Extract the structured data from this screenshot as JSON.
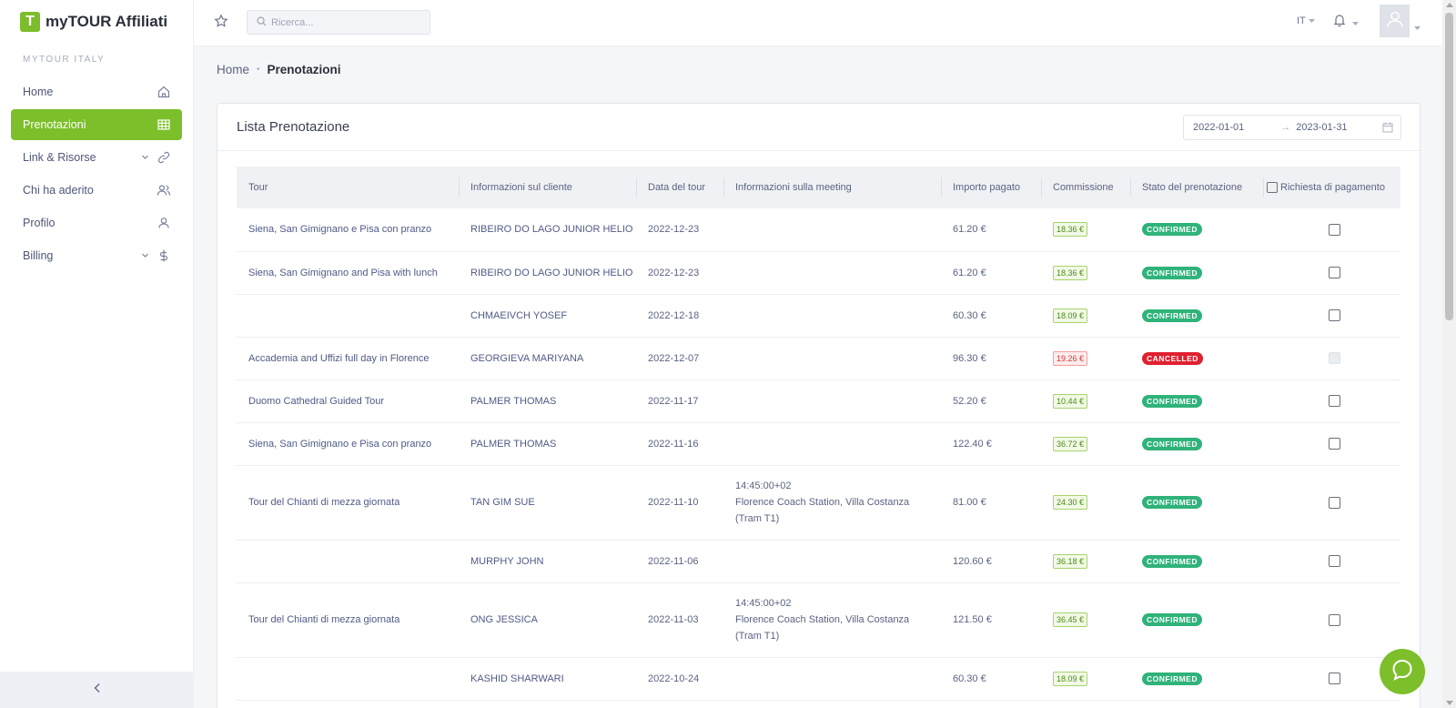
{
  "app": {
    "title": "myTOUR Affiliati",
    "logo_letter": "T",
    "accent": "#7cbf2b"
  },
  "sidebar": {
    "section": "MYTOUR ITALY",
    "items": [
      {
        "label": "Home",
        "icon": "home-icon"
      },
      {
        "label": "Prenotazioni",
        "icon": "table-icon",
        "active": true
      },
      {
        "label": "Link & Risorse",
        "icon": "link-icon",
        "expandable": true
      },
      {
        "label": "Chi ha aderito",
        "icon": "users-icon"
      },
      {
        "label": "Profilo",
        "icon": "user-icon"
      },
      {
        "label": "Billing",
        "icon": "dollar-icon",
        "expandable": true
      }
    ],
    "collapse_icon": "chevron-left-icon"
  },
  "topbar": {
    "search_placeholder": "Ricerca...",
    "language": "IT"
  },
  "breadcrumb": {
    "home": "Home",
    "current": "Prenotazioni"
  },
  "card": {
    "title": "Lista Prenotazione",
    "date_from": "2022-01-01",
    "date_to": "2023-01-31"
  },
  "table": {
    "headers": [
      "Tour",
      "Informazioni sul cliente",
      "Data del tour",
      "Informazioni sulla meeting",
      "Importo pagato",
      "Commissione",
      "Stato del prenotazione",
      "Richiesta di pagamento"
    ],
    "rows": [
      {
        "tour": "Siena, San Gimignano e Pisa con pranzo",
        "client": "RIBEIRO DO LAGO JUNIOR HELIO",
        "date": "2022-12-23",
        "meeting_time": "",
        "meeting_place": "",
        "meeting_place2": "",
        "amount": "61.20 €",
        "commission": "18.36 €",
        "status": "CONFIRMED"
      },
      {
        "tour": "Siena, San Gimignano and Pisa with lunch",
        "client": "RIBEIRO DO LAGO JUNIOR HELIO",
        "date": "2022-12-23",
        "meeting_time": "",
        "meeting_place": "",
        "meeting_place2": "",
        "amount": "61.20 €",
        "commission": "18.36 €",
        "status": "CONFIRMED"
      },
      {
        "tour": "",
        "client": "CHMAEIVCH YOSEF",
        "date": "2022-12-18",
        "meeting_time": "",
        "meeting_place": "",
        "meeting_place2": "",
        "amount": "60.30 €",
        "commission": "18.09 €",
        "status": "CONFIRMED"
      },
      {
        "tour": "Accademia and Uffizi full day in Florence",
        "client": "GEORGIEVA MARIYANA",
        "date": "2022-12-07",
        "meeting_time": "",
        "meeting_place": "",
        "meeting_place2": "",
        "amount": "96.30 €",
        "commission": "19.26 €",
        "status": "CANCELLED"
      },
      {
        "tour": "Duomo Cathedral Guided Tour",
        "client": "PALMER THOMAS",
        "date": "2022-11-17",
        "meeting_time": "",
        "meeting_place": "",
        "meeting_place2": "",
        "amount": "52.20 €",
        "commission": "10.44 €",
        "status": "CONFIRMED"
      },
      {
        "tour": "Siena, San Gimignano e Pisa con pranzo",
        "client": "PALMER THOMAS",
        "date": "2022-11-16",
        "meeting_time": "",
        "meeting_place": "",
        "meeting_place2": "",
        "amount": "122.40 €",
        "commission": "36.72 €",
        "status": "CONFIRMED"
      },
      {
        "tour": "Tour del Chianti di mezza giornata",
        "client": "TAN GIM SUE",
        "date": "2022-11-10",
        "meeting_time": "14:45:00+02",
        "meeting_place": "Florence Coach Station, Villa Costanza",
        "meeting_place2": "(Tram T1)",
        "amount": "81.00 €",
        "commission": "24.30 €",
        "status": "CONFIRMED"
      },
      {
        "tour": "",
        "client": "MURPHY JOHN",
        "date": "2022-11-06",
        "meeting_time": "",
        "meeting_place": "",
        "meeting_place2": "",
        "amount": "120.60 €",
        "commission": "36.18 €",
        "status": "CONFIRMED"
      },
      {
        "tour": "Tour del Chianti di mezza giornata",
        "client": "ONG JESSICA",
        "date": "2022-11-03",
        "meeting_time": "14:45:00+02",
        "meeting_place": "Florence Coach Station, Villa Costanza",
        "meeting_place2": "(Tram T1)",
        "amount": "121.50 €",
        "commission": "36.45 €",
        "status": "CONFIRMED"
      },
      {
        "tour": "",
        "client": "KASHID SHARWARI",
        "date": "2022-10-24",
        "meeting_time": "",
        "meeting_place": "",
        "meeting_place2": "",
        "amount": "60.30 €",
        "commission": "18.09 €",
        "status": "CONFIRMED"
      }
    ]
  },
  "colors": {
    "confirmed": "#2fb37a",
    "cancelled": "#e0202f"
  }
}
